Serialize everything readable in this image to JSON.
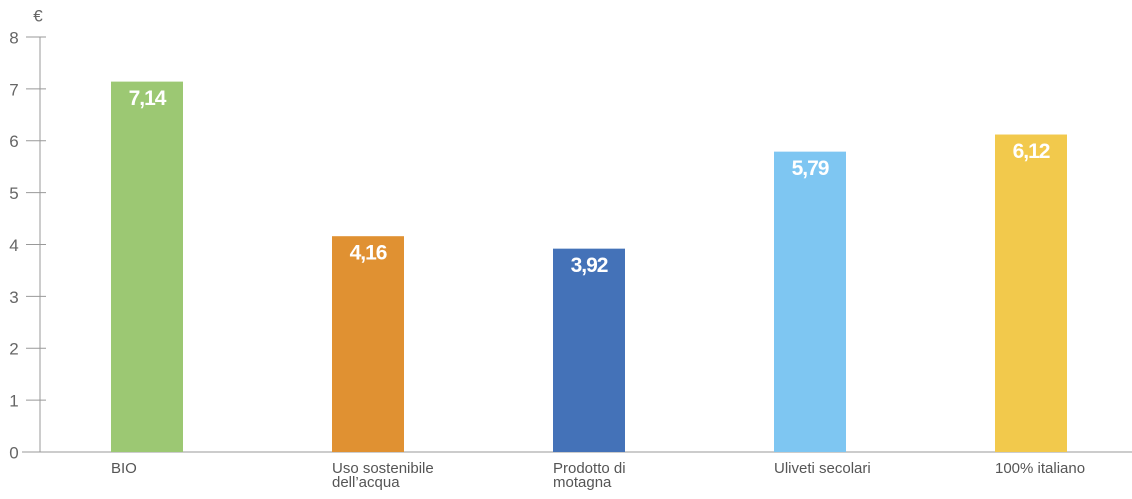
{
  "chart_data": {
    "type": "bar",
    "ylabel": "€",
    "categories": [
      "BIO",
      "Uso sostenibile dell’acqua",
      "Prodotto di motagna",
      "Uliveti secolari",
      "100% italiano"
    ],
    "values": [
      7.14,
      4.16,
      3.92,
      5.79,
      6.12
    ],
    "value_labels": [
      "7,14",
      "4,16",
      "3,92",
      "5,79",
      "6,12"
    ],
    "colors": [
      "#9cc873",
      "#e09132",
      "#4472b8",
      "#7ec6f2",
      "#f2c94c"
    ],
    "ylim": [
      0,
      8
    ],
    "yticks": [
      0,
      1,
      2,
      3,
      4,
      5,
      6,
      7,
      8
    ]
  }
}
